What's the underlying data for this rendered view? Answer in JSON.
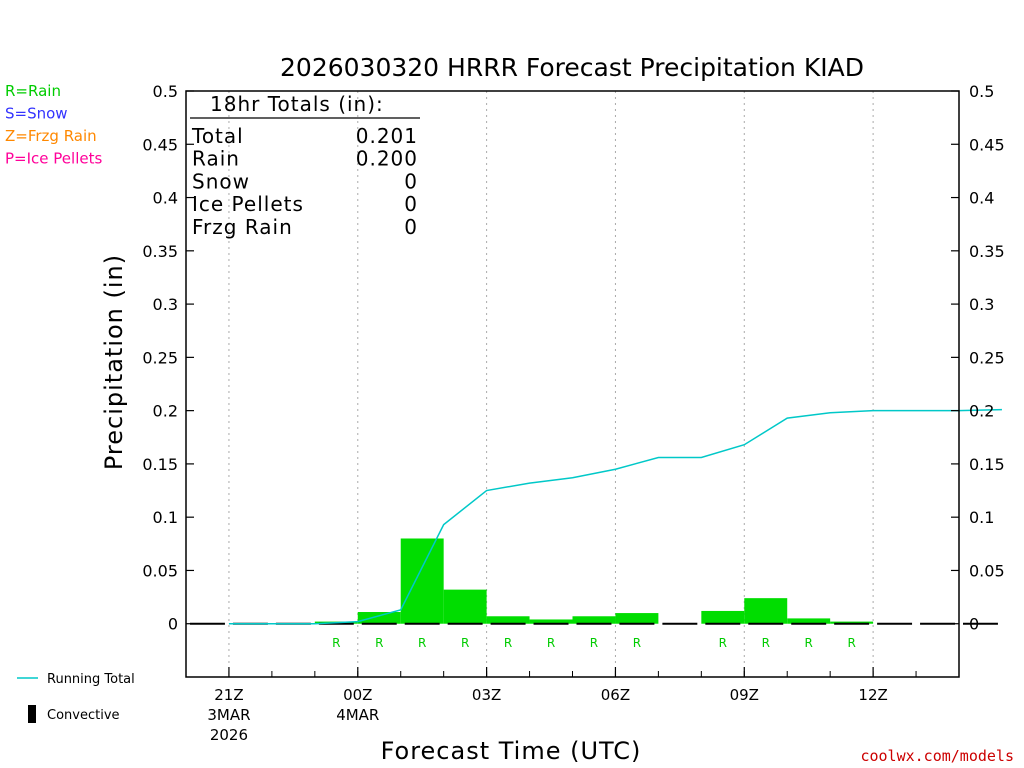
{
  "chart_data": {
    "type": "bar",
    "title": "2026030320 HRRR Forecast Precipitation KIAD",
    "xlabel": "Forecast Time (UTC)",
    "ylabel": "Precipitation (in)",
    "ylim": [
      -0.05,
      0.5
    ],
    "yticks": [
      "0.5",
      "0.45",
      "0.4",
      "0.35",
      "0.3",
      "0.25",
      "0.2",
      "0.15",
      "0.1",
      "0.05",
      "0"
    ],
    "x_range_hours": [
      -1,
      17
    ],
    "x_ticks": [
      {
        "hour": 0,
        "label": "21Z",
        "sub1": "3MAR",
        "sub2": "2026"
      },
      {
        "hour": 3,
        "label": "00Z",
        "sub1": "4MAR",
        "sub2": ""
      },
      {
        "hour": 6,
        "label": "03Z",
        "sub1": "",
        "sub2": ""
      },
      {
        "hour": 9,
        "label": "06Z",
        "sub1": "",
        "sub2": ""
      },
      {
        "hour": 12,
        "label": "09Z",
        "sub1": "",
        "sub2": ""
      },
      {
        "hour": 15,
        "label": "12Z",
        "sub1": "",
        "sub2": ""
      }
    ],
    "hourly_precip": [
      0,
      0,
      0,
      0.002,
      0.011,
      0.08,
      0.032,
      0.007,
      0.004,
      0.007,
      0.01,
      0,
      0.012,
      0.024,
      0.005,
      0.002,
      0,
      0,
      0
    ],
    "ptype": [
      "",
      "",
      "",
      "R",
      "R",
      "R",
      "R",
      "R",
      "R",
      "R",
      "R",
      "",
      "R",
      "R",
      "R",
      "R",
      "",
      "",
      ""
    ],
    "running_total": [
      0,
      0,
      0,
      0.002,
      0.013,
      0.093,
      0.125,
      0.132,
      0.137,
      0.145,
      0.156,
      0.156,
      0.168,
      0.193,
      0.198,
      0.2,
      0.2,
      0.2,
      0.201
    ],
    "bar_color": "#00dd00",
    "line_color": "#00c8c8",
    "grid": "vertical dotted",
    "totals": {
      "header": "18hr Totals (in):",
      "rows": [
        {
          "label": "Total",
          "value": "0.201"
        },
        {
          "label": "Rain",
          "value": "0.200"
        },
        {
          "label": "Snow",
          "value": "0"
        },
        {
          "label": "Ice Pellets",
          "value": "0"
        },
        {
          "label": "Frzg Rain",
          "value": "0"
        }
      ]
    },
    "legend_ptypes": [
      {
        "text": "R=Rain",
        "color": "#00cc00"
      },
      {
        "text": "S=Snow",
        "color": "#3333ff"
      },
      {
        "text": "Z=Frzg Rain",
        "color": "#ff8800"
      },
      {
        "text": "P=Ice Pellets",
        "color": "#ff0099"
      }
    ],
    "legend_lines": [
      {
        "text": "Running Total",
        "kind": "line",
        "color": "#00c8c8"
      },
      {
        "text": "Convective",
        "kind": "block",
        "color": "#000000"
      }
    ],
    "credit": "coolwx.com/models"
  }
}
